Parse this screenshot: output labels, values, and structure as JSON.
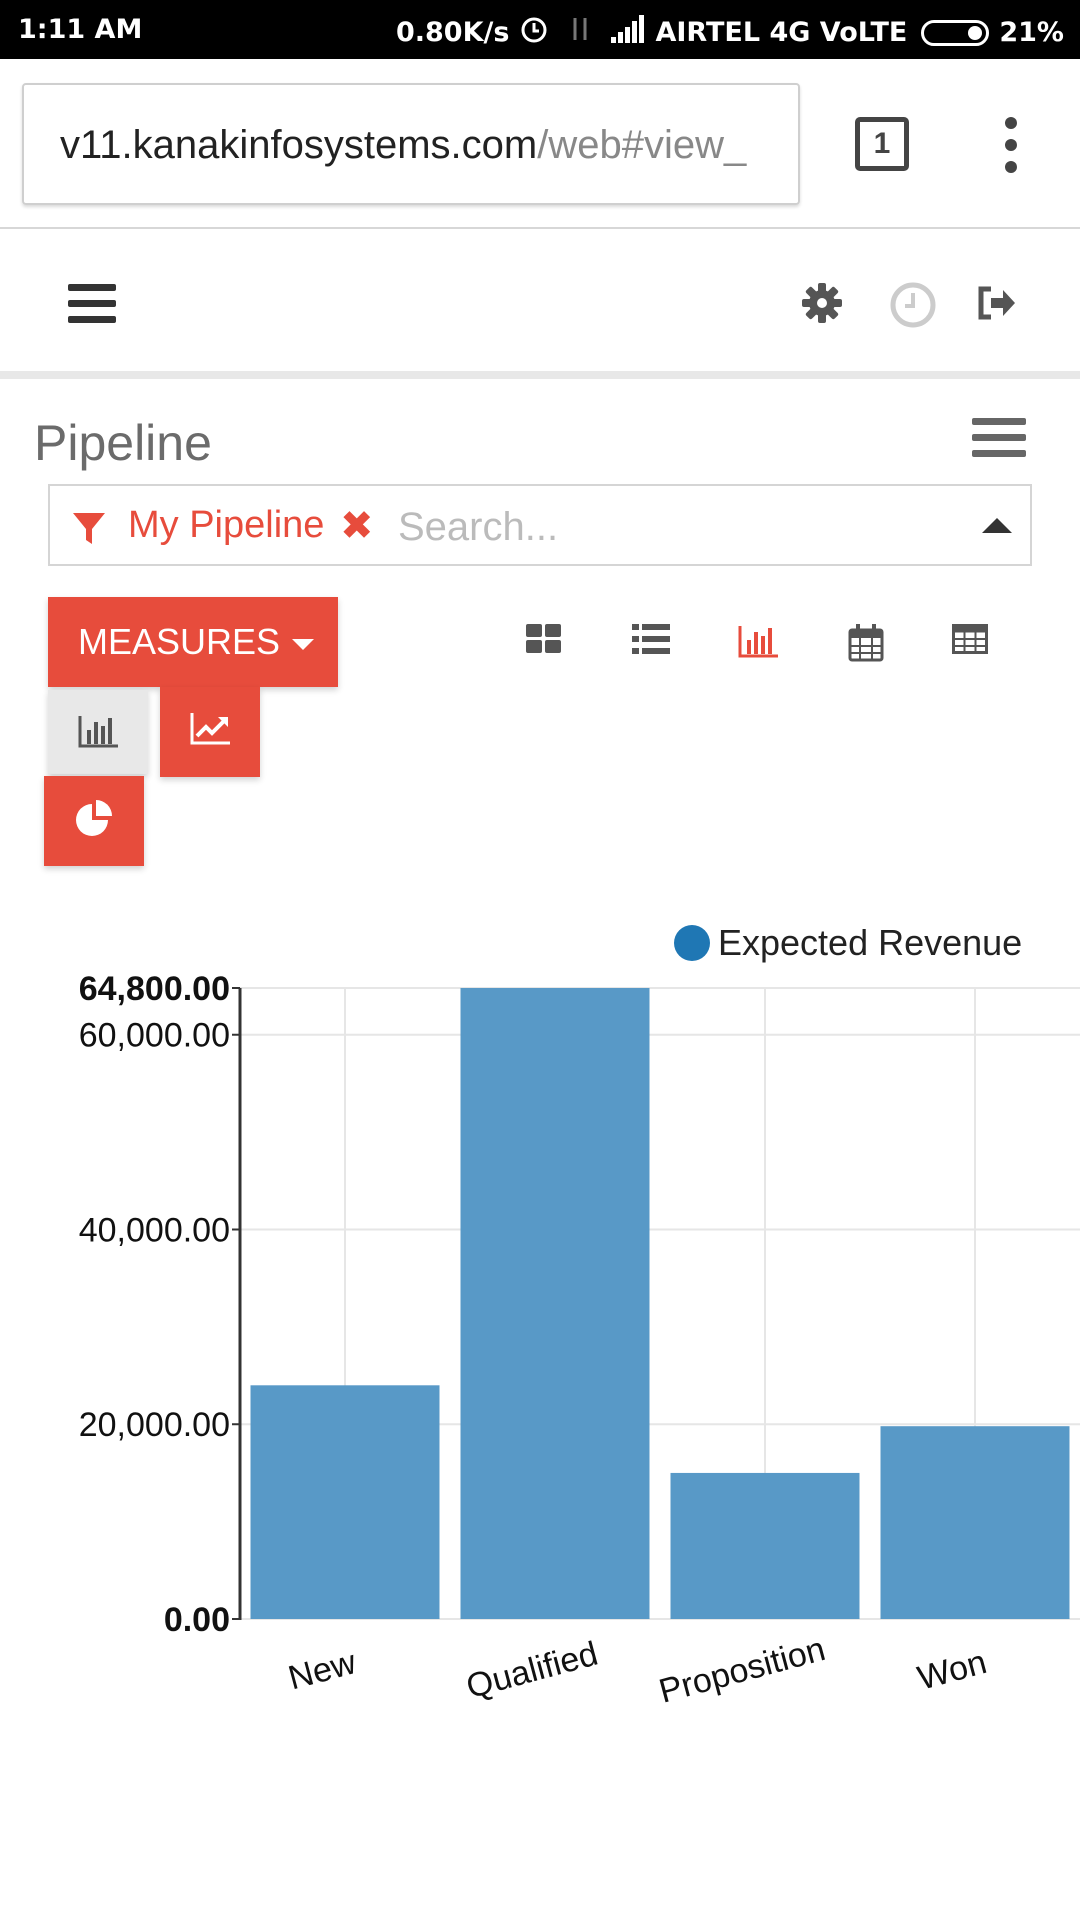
{
  "status_bar": {
    "time": "1:11 AM",
    "speed": "0.80K/s",
    "carrier": "AIRTEL 4G VoLTE",
    "battery": "21%"
  },
  "browser": {
    "url_host": "v11.kanakinfosystems.com",
    "url_path": "/web#view_",
    "tab_count": "1"
  },
  "page": {
    "title": "Pipeline"
  },
  "search": {
    "facet": "My Pipeline",
    "remove_symbol": "✖",
    "placeholder": "Search..."
  },
  "toolbar": {
    "measures_label": "MEASURES",
    "active_view": "graph",
    "active_chart_type": "bar"
  },
  "colors": {
    "accent": "#e74c3c",
    "bar": "#5899c7",
    "legend_dot": "#1f77b4"
  },
  "chart_data": {
    "type": "bar",
    "categories": [
      "New",
      "Qualified",
      "Proposition",
      "Won"
    ],
    "series": [
      {
        "name": "Expected Revenue",
        "values": [
          24000,
          64800,
          15000,
          19800
        ]
      }
    ],
    "ylim": [
      0,
      64800
    ],
    "y_ticks": [
      0,
      20000,
      40000,
      60000,
      64800
    ],
    "y_tick_labels": [
      "0.00",
      "20,000.00",
      "40,000.00",
      "60,000.00",
      "64,800.00"
    ],
    "grid": true,
    "legend_position": "top-right"
  }
}
